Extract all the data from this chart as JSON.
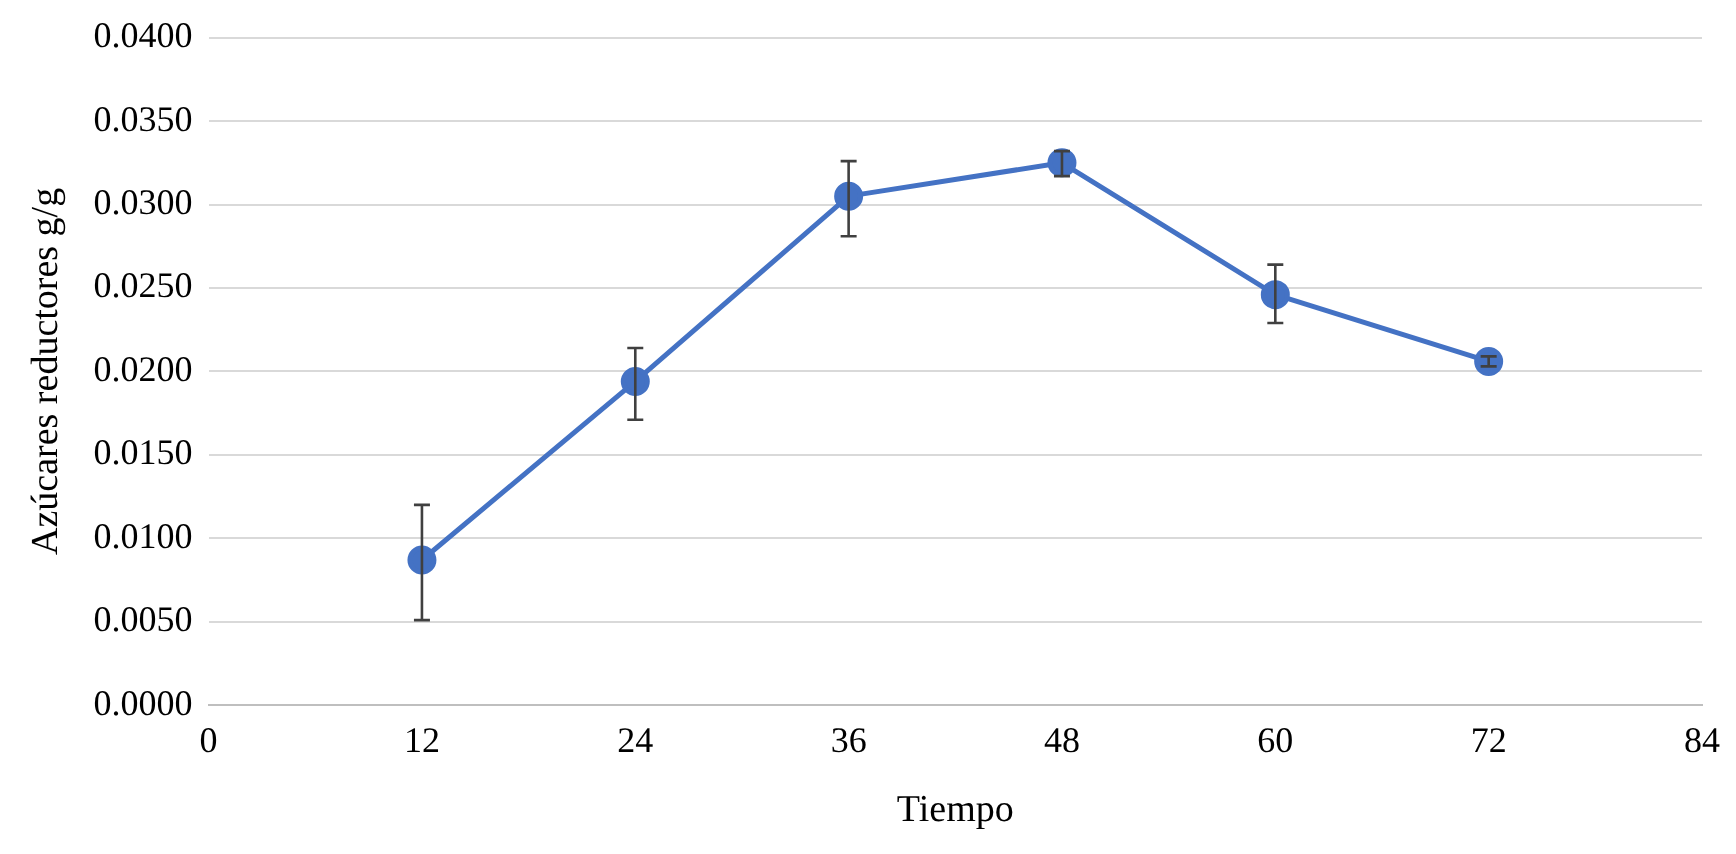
{
  "chart_data": {
    "type": "line",
    "xlabel": "Tiempo",
    "ylabel": "Azúcares reductores g/g",
    "x": [
      12,
      24,
      36,
      48,
      60,
      72
    ],
    "series": [
      {
        "color": "#4472c4",
        "values": [
          0.0087,
          0.0194,
          0.0305,
          0.0325,
          0.0246,
          0.0206
        ],
        "errors": [
          [
            0.0051,
            0.012
          ],
          [
            0.0171,
            0.0214
          ],
          [
            0.0281,
            0.0326
          ],
          [
            0.0317,
            0.0332
          ],
          [
            0.0229,
            0.0264
          ],
          [
            0.0203,
            0.0209
          ]
        ]
      }
    ],
    "xlim": [
      0,
      84
    ],
    "xticks": [
      0,
      12,
      24,
      36,
      48,
      60,
      72,
      84
    ],
    "ylim": [
      0,
      0.04
    ],
    "yticks": [
      {
        "value": 0,
        "label": "0.0000"
      },
      {
        "value": 0.005,
        "label": "0.0050"
      },
      {
        "value": 0.01,
        "label": "0.0100"
      },
      {
        "value": 0.015,
        "label": "0.0150"
      },
      {
        "value": 0.02,
        "label": "0.0200"
      },
      {
        "value": 0.025,
        "label": "0.0250"
      },
      {
        "value": 0.03,
        "label": "0.0300"
      },
      {
        "value": 0.035,
        "label": "0.0350"
      },
      {
        "value": 0.04,
        "label": "0.0400"
      }
    ],
    "grid": "y",
    "marker": "circle",
    "line_style": "solid",
    "legend": false
  }
}
